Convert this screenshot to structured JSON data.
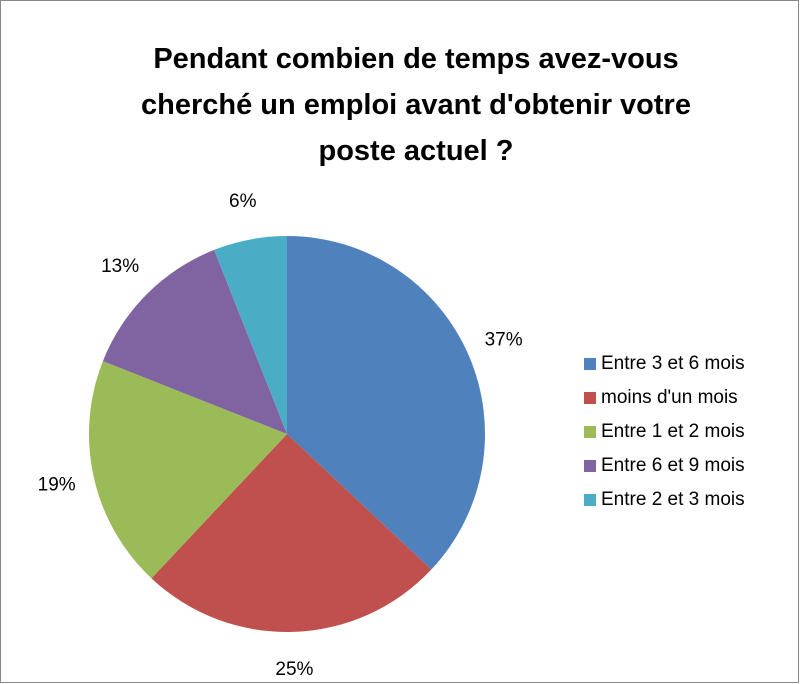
{
  "chart_data": {
    "type": "pie",
    "title": "Pendant combien de temps avez-vous cherché un emploi avant d'obtenir votre poste actuel ?",
    "categories": [
      "Entre 3 et 6 mois",
      "moins d'un mois",
      "Entre 1 et 2 mois",
      "Entre 6 et 9 mois",
      "Entre 2 et 3 mois"
    ],
    "values": [
      37,
      25,
      19,
      13,
      6
    ],
    "value_labels": [
      "37%",
      "25%",
      "19%",
      "13%",
      "6%"
    ],
    "colors": [
      "#4f81bd",
      "#c0504d",
      "#9bbb59",
      "#8064a2",
      "#4bacc6"
    ],
    "legend": "right"
  }
}
